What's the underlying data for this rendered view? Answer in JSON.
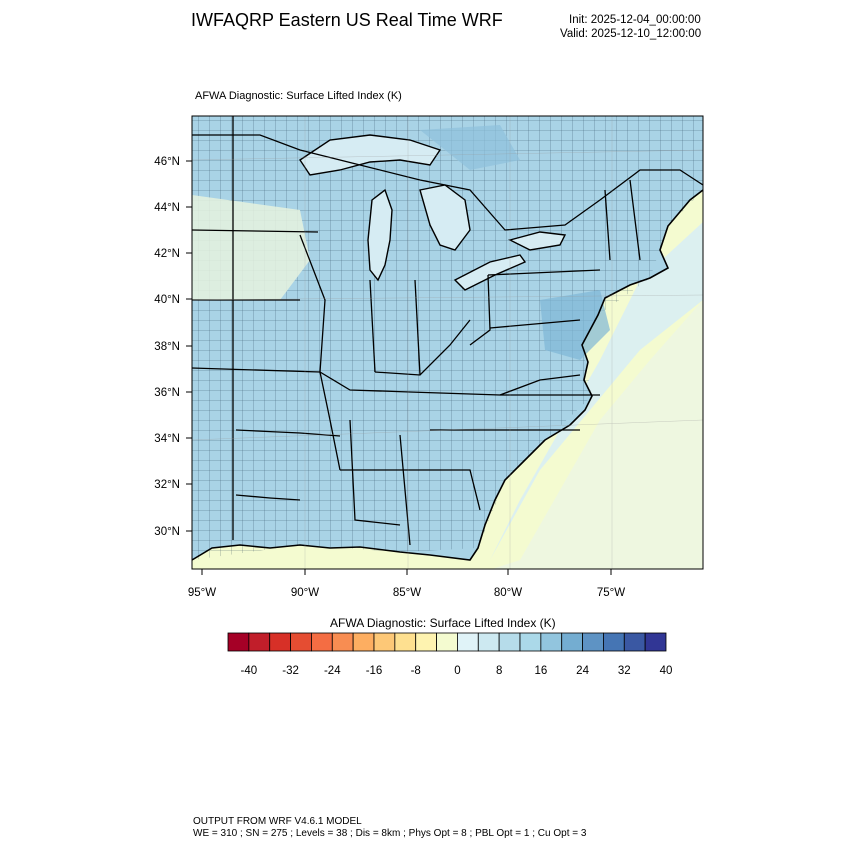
{
  "header": {
    "title": "IWFAQRP Eastern US Real Time WRF",
    "init": "Init: 2025-12-04_00:00:00",
    "valid": "Valid: 2025-12-10_12:00:00"
  },
  "map": {
    "subtitle": "AFWA Diagnostic: Surface Lifted Index   (K)",
    "lat_labels": [
      "46°N",
      "44°N",
      "42°N",
      "40°N",
      "38°N",
      "36°N",
      "34°N",
      "32°N",
      "30°N"
    ],
    "lon_labels": [
      "95°W",
      "90°W",
      "85°W",
      "80°W",
      "75°W"
    ]
  },
  "colorbar": {
    "title": "AFWA Diagnostic: Surface Lifted Index  (K)",
    "tick_labels": [
      "-40",
      "-32",
      "-24",
      "-16",
      "-8",
      "0",
      "8",
      "16",
      "24",
      "32",
      "40"
    ],
    "colors": [
      "#a50026",
      "#c11e2a",
      "#d73027",
      "#e54d32",
      "#f46d43",
      "#f88d52",
      "#fdae61",
      "#fdc877",
      "#fee090",
      "#fef3b0",
      "#f4fbd0",
      "#e0f3f8",
      "#cde9f1",
      "#b6dcea",
      "#abd9e9",
      "#92c5de",
      "#74add1",
      "#5e93c4",
      "#4575b4",
      "#3a58a3",
      "#313695"
    ]
  },
  "footer": {
    "line1": "OUTPUT FROM WRF V4.6.1 MODEL",
    "line2": "WE = 310 ; SN = 275 ; Levels = 38 ; Dis = 8km ; Phys Opt = 8 ; PBL Opt = 1 ; Cu Opt = 3"
  }
}
